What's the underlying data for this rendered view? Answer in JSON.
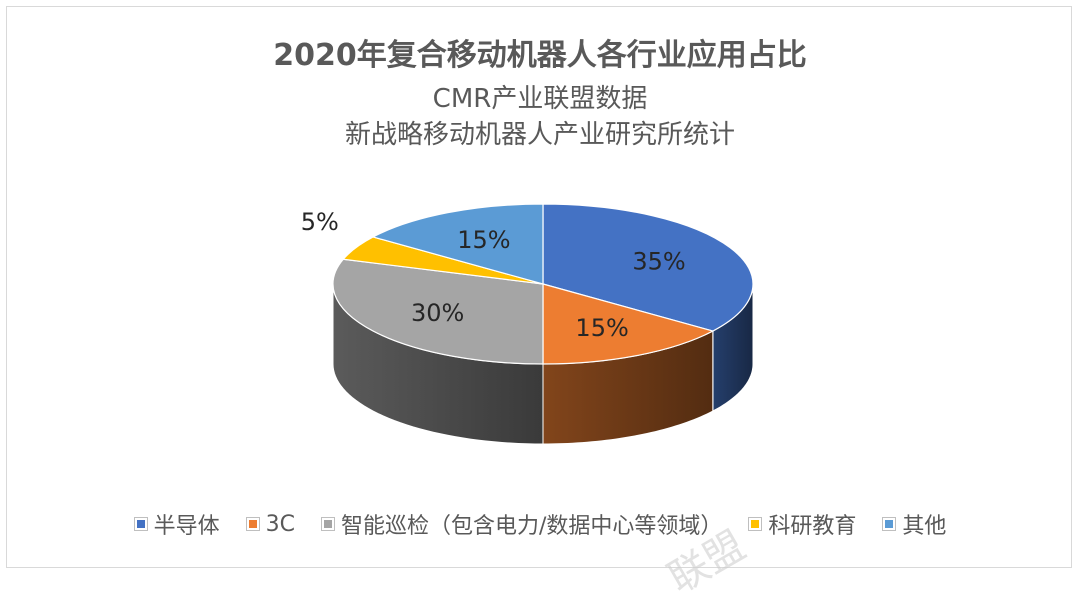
{
  "chart_data": {
    "type": "pie",
    "title": "2020年复合移动机器人各行业应用占比",
    "subtitle_lines": [
      "CMR产业联盟数据",
      "新战略移动机器人产业研究所统计"
    ],
    "slices": [
      {
        "name": "半导体",
        "value": 35,
        "label": "35%",
        "color": "#4472C4"
      },
      {
        "name": "3C",
        "value": 15,
        "label": "15%",
        "color": "#ED7D31"
      },
      {
        "name": "智能巡检（包含电力/数据中心等领域）",
        "value": 30,
        "label": "30%",
        "color": "#A5A5A5"
      },
      {
        "name": "科研教育",
        "value": 5,
        "label": "5%",
        "color": "#FFC000"
      },
      {
        "name": "其他",
        "value": 15,
        "label": "15%",
        "color": "#5B9BD5"
      }
    ],
    "legend_position": "bottom",
    "style": "3d-pie"
  },
  "watermark": "联盟"
}
